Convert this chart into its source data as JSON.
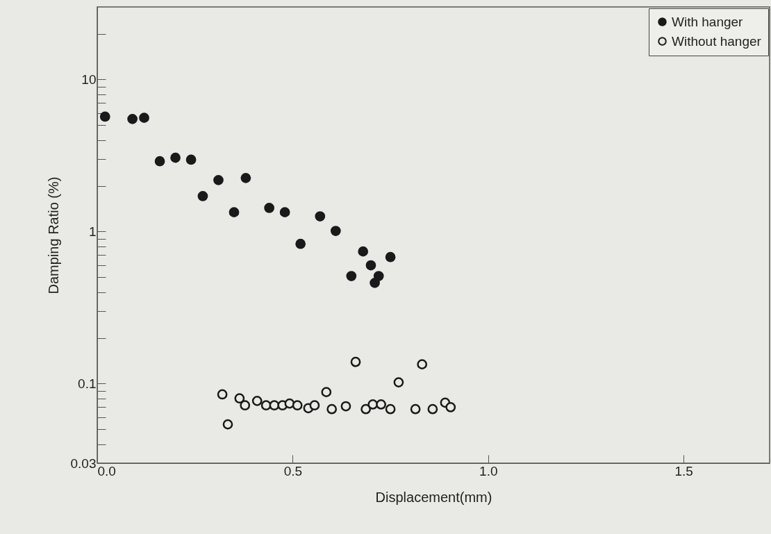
{
  "chart_data": {
    "type": "scatter",
    "xlabel": "Displacement(mm)",
    "ylabel": "Damping Ratio (%)",
    "log": "y",
    "marker": "circle",
    "legend": "top right",
    "grid": false,
    "xlim": [
      0,
      1.72
    ],
    "xticks": [
      {
        "value": 0,
        "label": "0.0"
      },
      0.5,
      {
        "value": 1,
        "label": "1.0"
      },
      1.5
    ],
    "ylim": [
      0.03,
      30
    ],
    "yticks": [
      0.03,
      {
        "value": 0.04,
        "label": null
      },
      {
        "value": 0.05,
        "label": null
      },
      {
        "value": 0.06,
        "label": null
      },
      {
        "value": 0.07,
        "label": null
      },
      {
        "value": 0.08,
        "label": null
      },
      {
        "value": 0.09,
        "label": null
      },
      0.1,
      {
        "value": 0.2,
        "label": null
      },
      {
        "value": 0.3,
        "label": null
      },
      {
        "value": 0.4,
        "label": null
      },
      {
        "value": 0.5,
        "label": null
      },
      {
        "value": 0.6,
        "label": null
      },
      {
        "value": 0.7,
        "label": null
      },
      {
        "value": 0.8,
        "label": null
      },
      {
        "value": 0.9,
        "label": null
      },
      1,
      {
        "value": 2,
        "label": null
      },
      {
        "value": 3,
        "label": null
      },
      {
        "value": 4,
        "label": null
      },
      {
        "value": 5,
        "label": null
      },
      {
        "value": 6,
        "label": null
      },
      {
        "value": 7,
        "label": null
      },
      {
        "value": 8,
        "label": null
      },
      {
        "value": 9,
        "label": null
      },
      10,
      {
        "value": 20,
        "label": null
      }
    ],
    "series": [
      {
        "name": "With hanger",
        "color": "#1a1a1a",
        "x": [
          0.02,
          0.09,
          0.12,
          0.16,
          0.2,
          0.24,
          0.27,
          0.31,
          0.35,
          0.38,
          0.44,
          0.48,
          0.52,
          0.57,
          0.61,
          0.65,
          0.68,
          0.7,
          0.71,
          0.72,
          0.75
        ],
        "values": [
          5.7,
          5.5,
          5.6,
          2.9,
          3.06,
          2.97,
          1.71,
          2.18,
          1.34,
          2.25,
          1.43,
          1.34,
          0.83,
          1.26,
          1.01,
          0.51,
          0.74,
          0.6,
          0.46,
          0.51,
          0.68
        ]
      },
      {
        "name": "Without hanger",
        "color": "#1a1a1a",
        "x": [
          0.32,
          0.334,
          0.364,
          0.378,
          0.409,
          0.432,
          0.453,
          0.474,
          0.492,
          0.512,
          0.54,
          0.556,
          0.586,
          0.6,
          0.636,
          0.661,
          0.687,
          0.705,
          0.726,
          0.75,
          0.771,
          0.814,
          0.831,
          0.858,
          0.89,
          0.904
        ],
        "values": [
          0.085,
          0.054,
          0.08,
          0.072,
          0.077,
          0.072,
          0.072,
          0.072,
          0.074,
          0.072,
          0.069,
          0.072,
          0.088,
          0.068,
          0.071,
          0.139,
          0.068,
          0.073,
          0.073,
          0.068,
          0.102,
          0.068,
          0.134,
          0.068,
          0.075,
          0.07
        ]
      }
    ]
  }
}
